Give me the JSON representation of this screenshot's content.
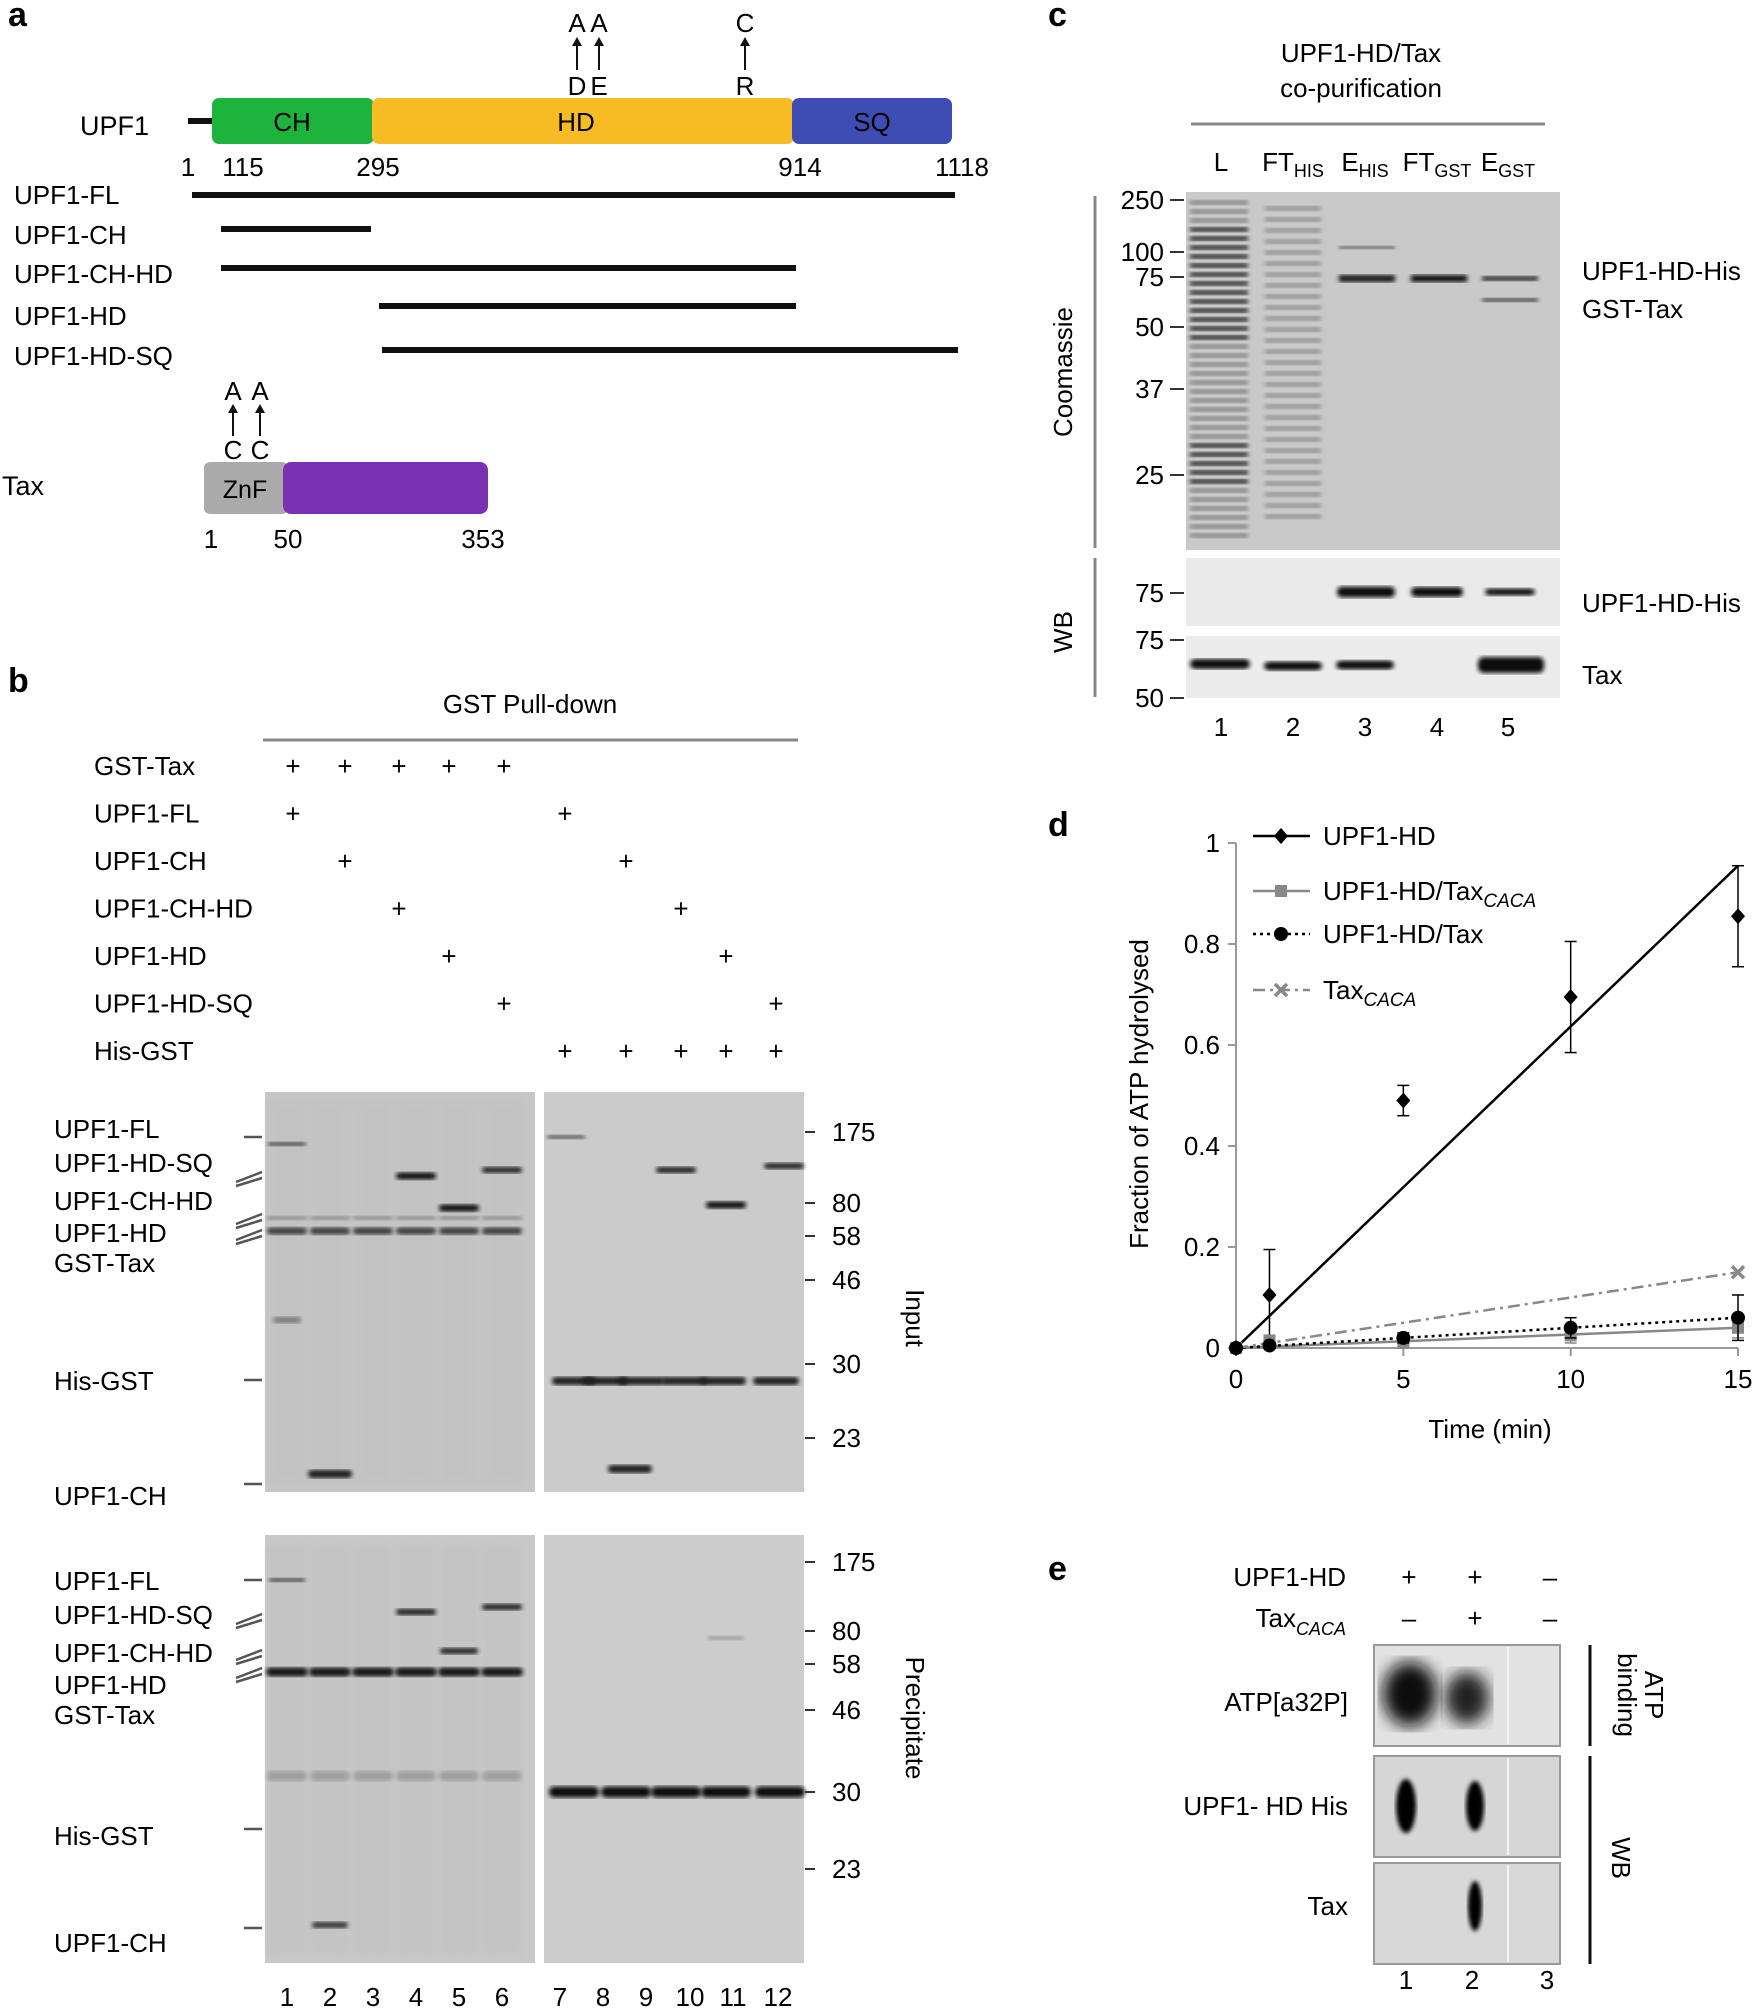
{
  "panel_labels": {
    "a": "a",
    "b": "b",
    "c": "c",
    "d": "d",
    "e": "e"
  },
  "panel_a": {
    "upf1_label": "UPF1",
    "domains": [
      {
        "name": "CH",
        "color": "#1db33d"
      },
      {
        "name": "HD",
        "color": "#f7bc23"
      },
      {
        "name": "SQ",
        "color": "#3e4db3"
      }
    ],
    "positions": [
      "1",
      "115",
      "295",
      "914",
      "1118"
    ],
    "mutations": {
      "de_top": [
        "A",
        "A"
      ],
      "de_bottom": [
        "D",
        "E"
      ],
      "cr_top": "C",
      "cr_bottom": "R"
    },
    "constructs": [
      "UPF1-FL",
      "UPF1-CH",
      "UPF1-CH-HD",
      "UPF1-HD",
      "UPF1-HD-SQ"
    ],
    "tax_label": "Tax",
    "tax_domains": [
      {
        "name": "ZnF",
        "color": "#aaaaaa"
      },
      {
        "name": "",
        "color": "#7a30b0"
      }
    ],
    "tax_positions": [
      "1",
      "50",
      "353"
    ],
    "tax_mut_top": [
      "A",
      "A"
    ],
    "tax_mut_bottom": [
      "C",
      "C"
    ]
  },
  "panel_b": {
    "title": "GST Pull-down",
    "rows": [
      {
        "label": "GST-Tax",
        "lanes": [
          1,
          2,
          3,
          4,
          5
        ]
      },
      {
        "label": "UPF1-FL",
        "lanes": [
          1,
          7
        ]
      },
      {
        "label": "UPF1-CH",
        "lanes": [
          2,
          8
        ]
      },
      {
        "label": "UPF1-CH-HD",
        "lanes": [
          3,
          9
        ]
      },
      {
        "label": "UPF1-HD",
        "lanes": [
          4,
          10
        ]
      },
      {
        "label": "UPF1-HD-SQ",
        "lanes": [
          5,
          11
        ]
      },
      {
        "label": "His-GST",
        "lanes": [
          7,
          8,
          9,
          10,
          11
        ]
      }
    ],
    "plus": "+",
    "band_labels": [
      "UPF1-FL",
      "UPF1-HD-SQ",
      "UPF1-CH-HD",
      "UPF1-HD",
      "GST-Tax",
      "His-GST",
      "UPF1-CH"
    ],
    "mw_markers": [
      "175",
      "80",
      "58",
      "46",
      "30",
      "23"
    ],
    "side_input": "Input",
    "side_precip": "Precipitate",
    "lane_numbers": [
      "1",
      "2",
      "3",
      "4",
      "5",
      "6",
      "7",
      "8",
      "9",
      "10",
      "11",
      "12"
    ]
  },
  "panel_c": {
    "title_line1": "UPF1-HD/Tax",
    "title_line2": "co-purification",
    "lanes": [
      {
        "main": "L",
        "sub": ""
      },
      {
        "main": "FT",
        "sub": "HIS"
      },
      {
        "main": "E",
        "sub": "HIS"
      },
      {
        "main": "FT",
        "sub": "GST"
      },
      {
        "main": "E",
        "sub": "GST"
      }
    ],
    "side_coomassie": "Coomassie",
    "side_wb": "WB",
    "mw_coomassie": [
      "250",
      "100",
      "75",
      "50",
      "37",
      "25"
    ],
    "mw_wb1": [
      "75"
    ],
    "mw_wb2": [
      "75",
      "50"
    ],
    "right_labels": [
      "UPF1-HD-His",
      "GST-Tax",
      "UPF1-HD-His",
      "Tax"
    ],
    "lane_numbers": [
      "1",
      "2",
      "3",
      "4",
      "5"
    ]
  },
  "chart_data": {
    "type": "scatter",
    "title": "",
    "xlabel": "Time (min)",
    "ylabel": "Fraction of ATP hydrolysed",
    "xlim": [
      0,
      15
    ],
    "ylim": [
      0,
      1
    ],
    "x_ticks": [
      "0",
      "5",
      "10",
      "15"
    ],
    "y_ticks": [
      "0",
      "0.2",
      "0.4",
      "0.6",
      "0.8",
      "1"
    ],
    "legend_position": "top-left",
    "series": [
      {
        "name": "UPF1-HD",
        "sub": "",
        "color": "#000000",
        "marker": "diamond",
        "dash": "",
        "x": [
          0,
          1,
          5,
          10,
          15
        ],
        "y": [
          0,
          0.105,
          0.49,
          0.695,
          0.855
        ],
        "err": [
          0,
          0.09,
          0.03,
          0.11,
          0.1
        ],
        "fit": [
          0,
          0.955
        ]
      },
      {
        "name": "UPF1-HD/Tax",
        "sub": "CACA",
        "color": "#888888",
        "marker": "square",
        "dash": "",
        "x": [
          0,
          1,
          5,
          10,
          15
        ],
        "y": [
          0,
          0.015,
          0.01,
          0.025,
          0.04
        ],
        "err": [
          0,
          0.01,
          0.01,
          0.015,
          0.02
        ],
        "fit": [
          0,
          0.04
        ]
      },
      {
        "name": "UPF1-HD/Tax",
        "sub": "",
        "color": "#000000",
        "marker": "circle",
        "dash": "3,4",
        "x": [
          0,
          1,
          5,
          10,
          15
        ],
        "y": [
          0,
          0.005,
          0.02,
          0.04,
          0.06
        ],
        "err": [
          0,
          0.005,
          0.01,
          0.02,
          0.045
        ],
        "fit": [
          0,
          0.06
        ]
      },
      {
        "name": "Tax",
        "sub": "CACA",
        "color": "#888888",
        "marker": "x",
        "dash": "12,5,3,5",
        "x": [
          15
        ],
        "y": [
          0.15
        ],
        "err": [
          0
        ],
        "fit": [
          0,
          0.15
        ]
      }
    ]
  },
  "panel_e": {
    "row1_label": "UPF1-HD",
    "row1_values": [
      "+",
      "+",
      "–"
    ],
    "row2_label": "Tax",
    "row2_sub": "CACA",
    "row2_values": [
      "–",
      "+",
      "–"
    ],
    "blot_labels": [
      "ATP[a32P]",
      "UPF1- HD His",
      "Tax"
    ],
    "side_atp_line1": "ATP",
    "side_atp_line2": "binding",
    "side_wb": "WB",
    "lane_numbers": [
      "1",
      "2",
      "3"
    ]
  }
}
